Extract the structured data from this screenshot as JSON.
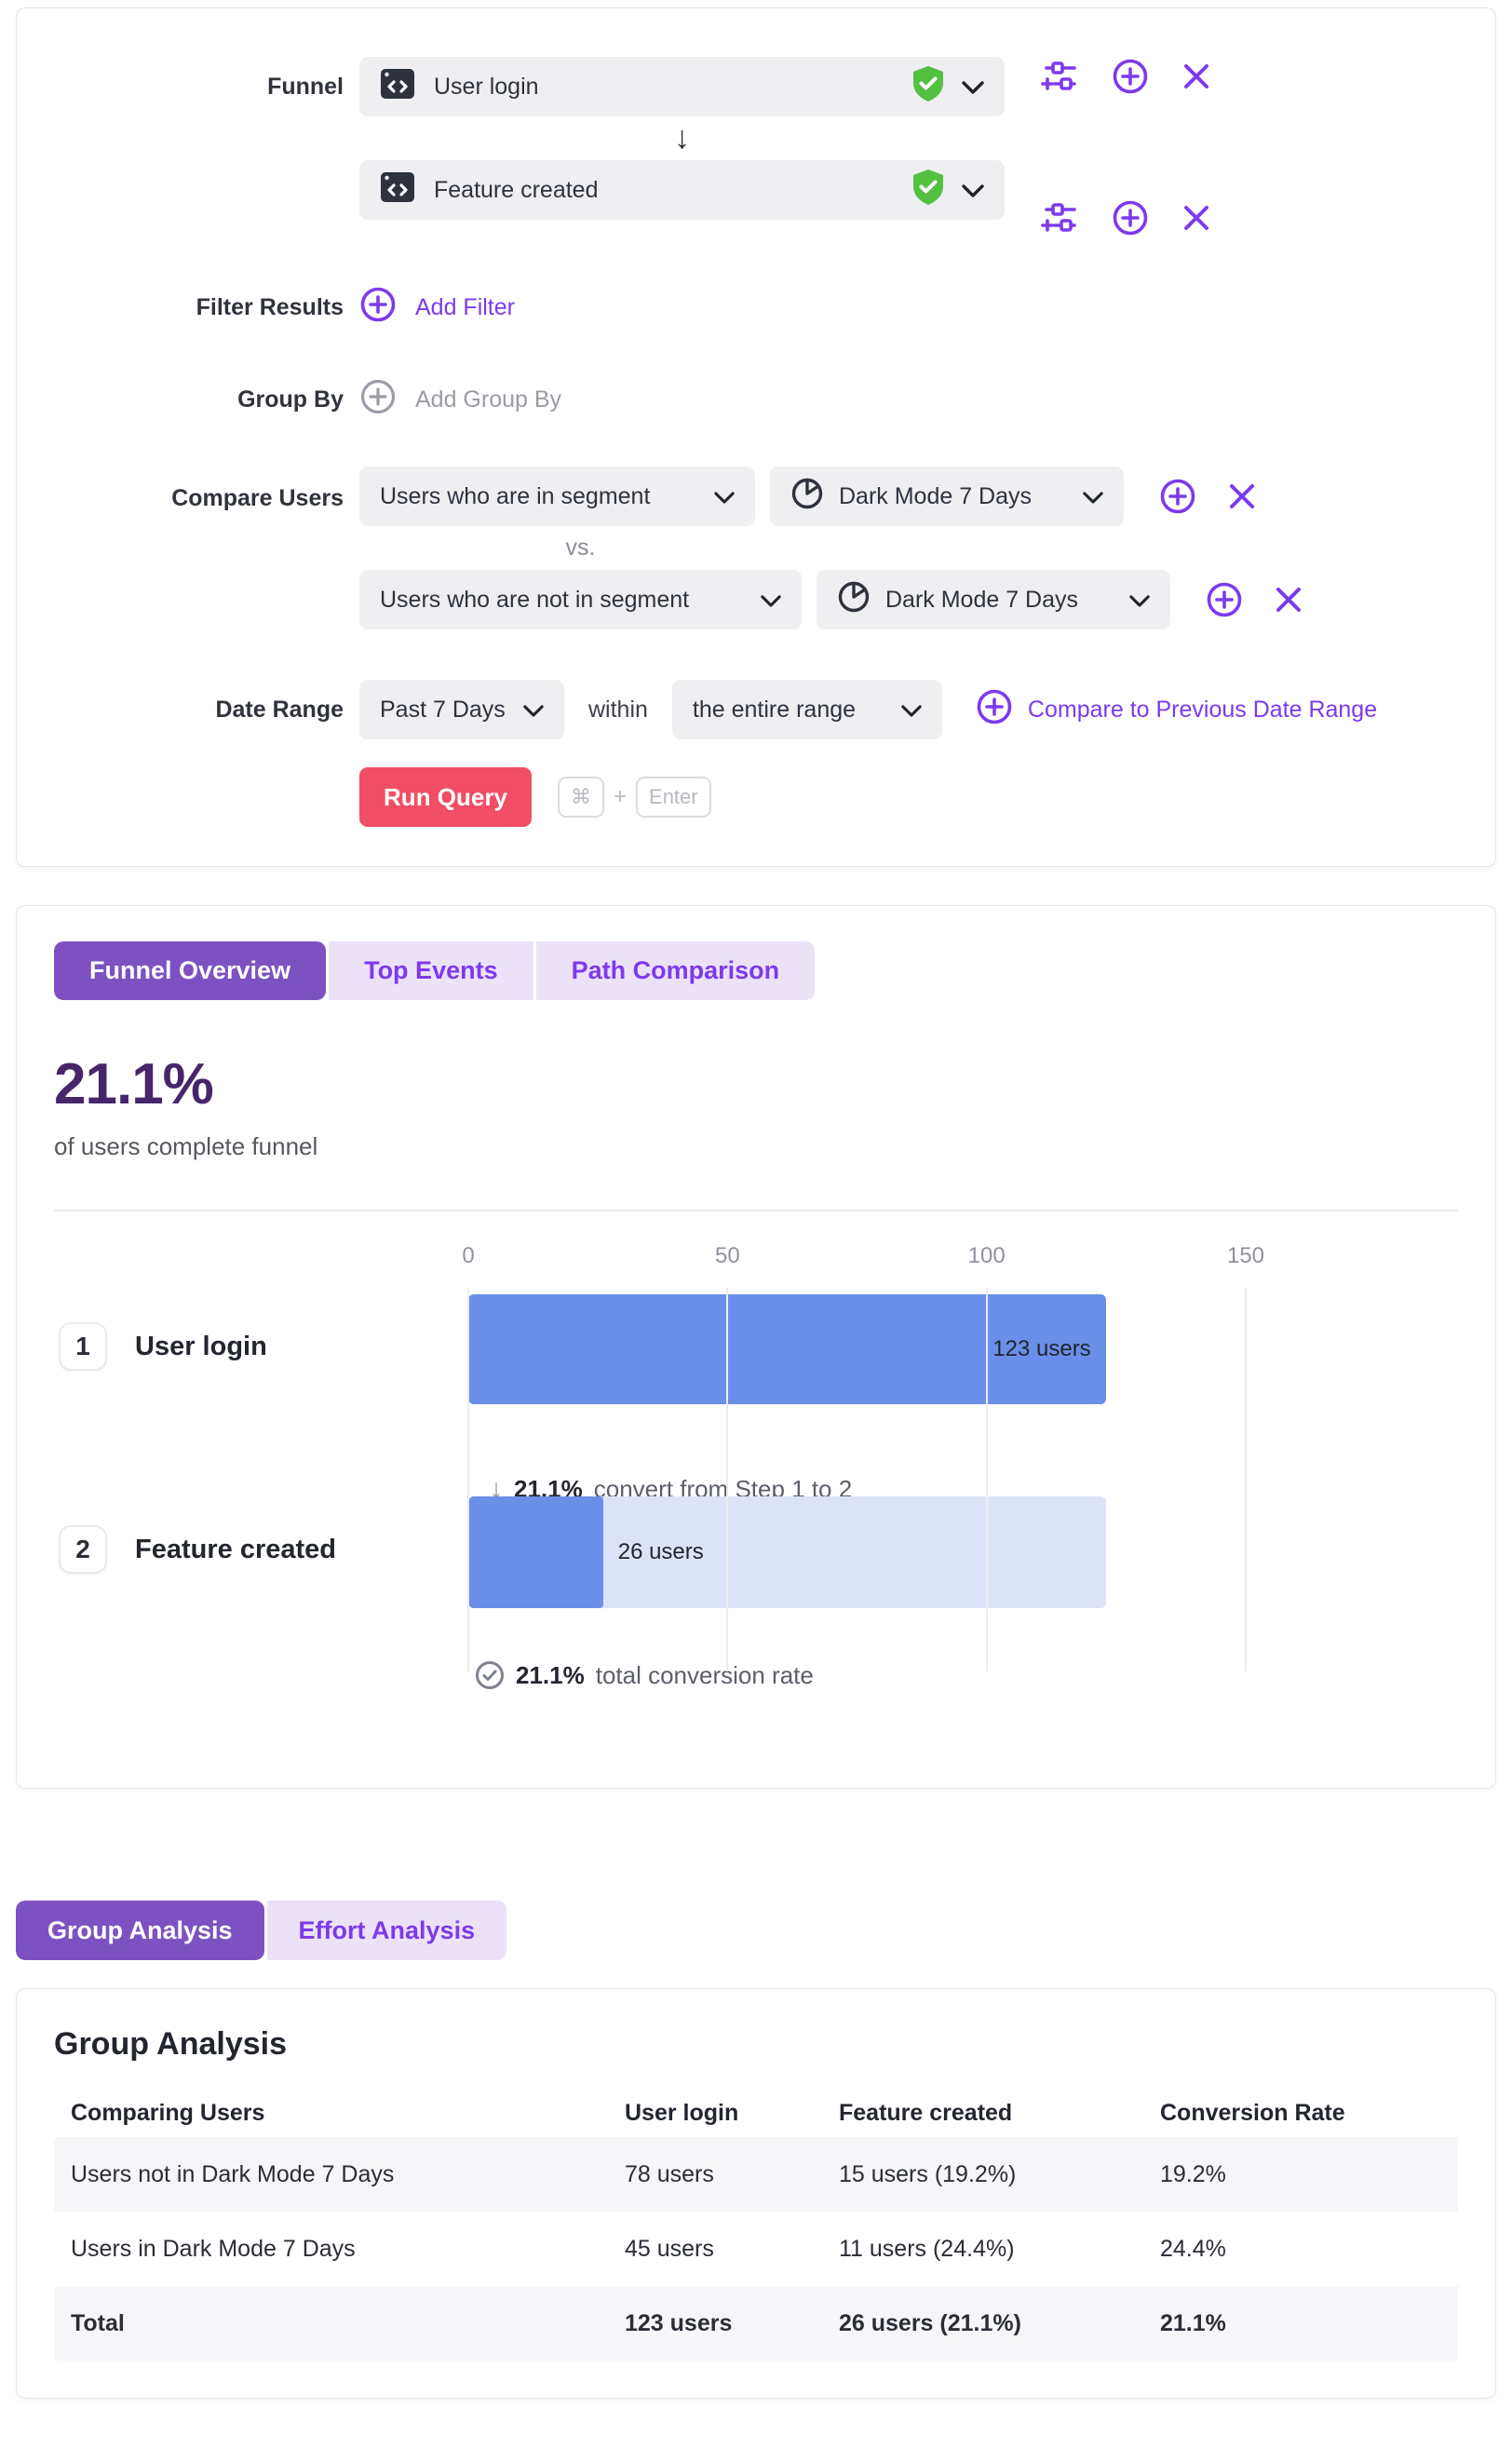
{
  "query_builder": {
    "funnel_label": "Funnel",
    "step_arrow": "↓",
    "steps": [
      {
        "name": "User login"
      },
      {
        "name": "Feature created"
      }
    ],
    "filter_results": {
      "label": "Filter Results",
      "action": "Add Filter"
    },
    "group_by": {
      "label": "Group By",
      "action": "Add Group By"
    },
    "compare_users": {
      "label": "Compare Users",
      "separator": "vs.",
      "rows": [
        {
          "segment_type": "Users who are in segment",
          "segment": "Dark Mode 7 Days"
        },
        {
          "segment_type": "Users who are not in segment",
          "segment": "Dark Mode 7 Days"
        }
      ]
    },
    "date_range": {
      "label": "Date Range",
      "range": "Past 7 Days",
      "within_label": "within",
      "scope": "the entire range",
      "compare_link": "Compare to Previous Date Range"
    },
    "run_query": {
      "label": "Run Query",
      "shortcut_keys": [
        "⌘",
        "Enter"
      ],
      "shortcut_joiner": "+"
    }
  },
  "results": {
    "tabs": [
      {
        "label": "Funnel Overview"
      },
      {
        "label": "Top Events"
      },
      {
        "label": "Path Comparison"
      }
    ],
    "headline": {
      "value": "21.1%",
      "caption": "of users complete funnel"
    },
    "chart_data": {
      "type": "bar",
      "orientation": "horizontal",
      "categories": [
        "User login",
        "Feature created"
      ],
      "values": [
        123,
        26
      ],
      "value_labels": [
        "123 users",
        "26 users"
      ],
      "x_ticks": [
        0,
        50,
        100,
        150
      ],
      "xlim": [
        0,
        150
      ],
      "grid": true,
      "annotations": [
        "21.1% convert from Step 1 to 2",
        "21.1% total conversion rate"
      ]
    },
    "steps": [
      {
        "index": "1",
        "name": "User login",
        "users_label": "123 users"
      },
      {
        "index": "2",
        "name": "Feature created",
        "users_label": "26 users"
      }
    ],
    "convert_note": {
      "arrow": "↓",
      "pct": "21.1%",
      "text": "convert from Step 1 to 2"
    },
    "total_note": {
      "pct": "21.1%",
      "text": "total conversion rate"
    }
  },
  "analysis": {
    "tabs": [
      {
        "label": "Group Analysis"
      },
      {
        "label": "Effort Analysis"
      }
    ],
    "title": "Group Analysis",
    "table": {
      "headers": [
        "Comparing Users",
        "User login",
        "Feature created",
        "Conversion Rate"
      ],
      "rows": [
        {
          "cells": [
            "Users not in Dark Mode 7 Days",
            "78 users",
            "15 users (19.2%)",
            "19.2%"
          ]
        },
        {
          "cells": [
            "Users in Dark Mode 7 Days",
            "45 users",
            "11 users (24.4%)",
            "24.4%"
          ]
        },
        {
          "cells": [
            "Total",
            "123 users",
            "26 users (21.1%)",
            "21.1%"
          ]
        }
      ]
    }
  },
  "colors": {
    "accent_purple": "#7c3aed",
    "active_tab_purple": "#7d51c1",
    "tab_lavender": "#ebe2f8",
    "headline_purple": "#46266b",
    "run_button_red": "#f04e64",
    "bar_blue": "#6b8fe8",
    "bar_track_blue": "#dce3f9",
    "verified_green": "#53c041"
  }
}
